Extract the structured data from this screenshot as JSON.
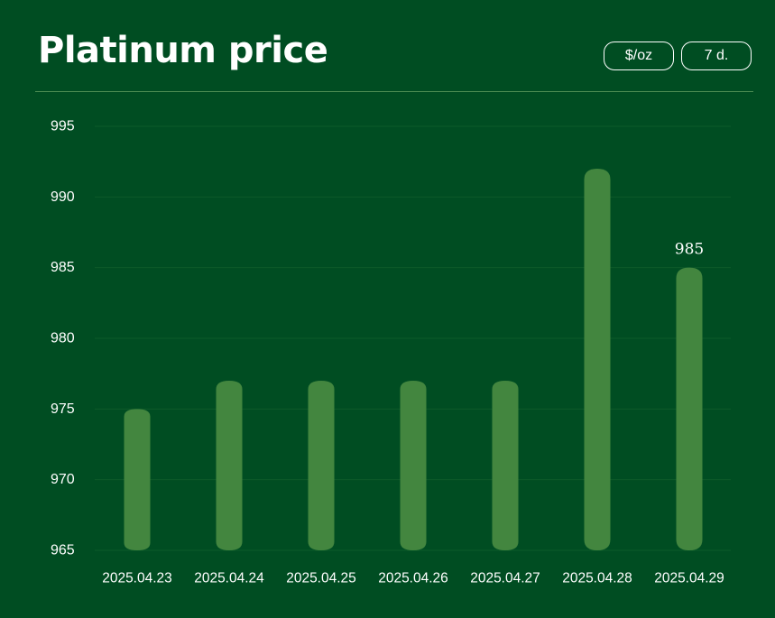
{
  "header": {
    "title": "Platinum price",
    "unit_button": "$/oz",
    "range_button": "7 d."
  },
  "colors": {
    "background": "#004d22",
    "bar": "#43863f",
    "grid": "#0d5a2a",
    "divider": "#4b8b52",
    "text": "#ffffff"
  },
  "chart_data": {
    "type": "bar",
    "title": "Platinum price",
    "xlabel": "",
    "ylabel": "",
    "categories": [
      "2025.04.23",
      "2025.04.24",
      "2025.04.25",
      "2025.04.26",
      "2025.04.27",
      "2025.04.28",
      "2025.04.29"
    ],
    "values": [
      975,
      977,
      977,
      977,
      977,
      992,
      985
    ],
    "ylim": [
      965,
      995
    ],
    "yticks": [
      965,
      970,
      975,
      980,
      985,
      990,
      995
    ],
    "ytick_labels": [
      "965",
      "970",
      "975",
      "980",
      "985",
      "990",
      "995"
    ],
    "data_labels": [
      {
        "category": "2025.04.29",
        "text": "985"
      }
    ],
    "grid": true,
    "legend": "none"
  }
}
